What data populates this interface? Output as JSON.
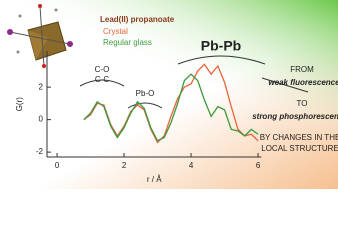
{
  "chart_data": {
    "type": "line",
    "legend_title": "Lead(II) propanoate",
    "xlabel": "r / Å",
    "ylabel": "G(r)",
    "xlim": [
      -0.3,
      6.1
    ],
    "xticks": [
      0,
      2,
      4,
      6
    ],
    "ylim": [
      -2.3,
      4.2
    ],
    "yticks": [
      -2,
      0,
      2
    ],
    "x": [
      0.8,
      1.0,
      1.2,
      1.4,
      1.6,
      1.8,
      2.0,
      2.2,
      2.4,
      2.6,
      2.8,
      3.0,
      3.2,
      3.4,
      3.6,
      3.8,
      4.0,
      4.2,
      4.4,
      4.6,
      4.8,
      5.0,
      5.2,
      5.4,
      5.6,
      5.8,
      6.0
    ],
    "series": [
      {
        "name": "Crystal",
        "color": "#e8643c",
        "values": [
          0,
          0.3,
          1.0,
          0.9,
          -0.3,
          -1.0,
          -0.4,
          0.5,
          0.9,
          0.6,
          -0.6,
          -1.4,
          -1.0,
          0.2,
          1.3,
          2.0,
          2.2,
          3.0,
          3.4,
          2.8,
          3.3,
          2.3,
          0.8,
          -0.6,
          -1.0,
          -0.9,
          -1.3
        ]
      },
      {
        "name": "Regular glass",
        "color": "#3c9a3c",
        "values": [
          0,
          0.4,
          1.1,
          0.8,
          -0.4,
          -1.1,
          -0.5,
          0.4,
          1.1,
          0.7,
          -0.5,
          -1.3,
          -1.1,
          -0.2,
          1.0,
          2.4,
          2.8,
          2.4,
          1.2,
          0.2,
          0.8,
          0.6,
          -0.6,
          -0.7,
          -1.0,
          -0.6,
          -0.9
        ]
      }
    ],
    "annotations": [
      "C-O",
      "C-C",
      "Pb-O",
      "Pb-Pb",
      "FROM",
      "weak fluorescence",
      "TO",
      "strong phosphorescence",
      "BY CHANGES IN THE",
      "LOCAL STRUCTURE"
    ]
  }
}
